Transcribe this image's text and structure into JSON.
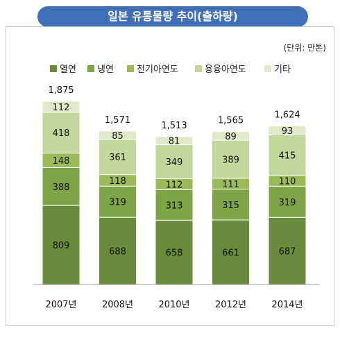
{
  "title": "일본 유통물량 추이(출하량)",
  "unit": "(단위: 만톤)",
  "chart_data": {
    "type": "bar",
    "stacked": true,
    "categories": [
      "2007년",
      "2008년",
      "2010년",
      "2012년",
      "2014년"
    ],
    "series": [
      {
        "name": "열연",
        "values": [
          809,
          688,
          658,
          661,
          687
        ],
        "color": "#6a8b3c"
      },
      {
        "name": "냉연",
        "values": [
          388,
          319,
          313,
          315,
          319
        ],
        "color": "#7fa446"
      },
      {
        "name": "전기아연도",
        "values": [
          148,
          118,
          112,
          111,
          110
        ],
        "color": "#9bbb59"
      },
      {
        "name": "용융아연도",
        "values": [
          418,
          361,
          349,
          389,
          415
        ],
        "color": "#c3d69b"
      },
      {
        "name": "기타",
        "values": [
          112,
          85,
          81,
          89,
          93
        ],
        "color": "#dfe9c7"
      }
    ],
    "totals": [
      "1,875",
      "1,571",
      "1,513",
      "1,565",
      "1,624"
    ],
    "legend_position": "top",
    "ylim": [
      0,
      1900
    ],
    "grid": false
  }
}
